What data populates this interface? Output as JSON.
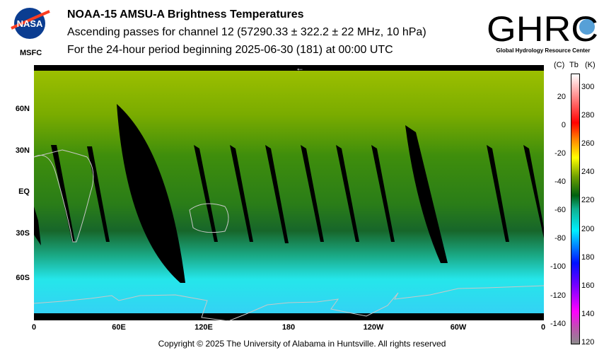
{
  "header": {
    "title": "NOAA-15 AMSU-A Brightness Temperatures",
    "subtitle": "Ascending passes for channel 12 (57290.33 ± 322.2 ± 22 MHz, 10 hPa)",
    "period": "For the 24-hour period beginning 2025-06-30 (181) at 00:00 UTC",
    "left_logo_text": "NASA",
    "left_logo_caption": "MSFC",
    "right_logo_text": "GHRC",
    "right_logo_caption": "Global Hydrology Resource Center"
  },
  "chart_data": {
    "type": "heatmap",
    "title": "NOAA-15 AMSU-A Brightness Temperatures",
    "x_ticks": [
      "0",
      "60E",
      "120E",
      "180",
      "120W",
      "60W",
      "0"
    ],
    "y_ticks": [
      "60N",
      "30N",
      "EQ",
      "30S",
      "60S"
    ],
    "xlim": [
      0,
      360
    ],
    "ylim": [
      -90,
      90
    ],
    "colorbar": {
      "label_c": "(C)",
      "label_tb": "Tb",
      "label_k": "(K)",
      "kelvin_ticks": [
        "300",
        "280",
        "260",
        "240",
        "220",
        "200",
        "180",
        "160",
        "140",
        "120"
      ],
      "celsius_ticks": [
        "20",
        "0",
        "-20",
        "-40",
        "-60",
        "-80",
        "-100",
        "-120",
        "-140"
      ],
      "range_k": [
        120,
        310
      ]
    },
    "field_description_values_k": {
      "north_pole": 245,
      "60N": 238,
      "equator": 228,
      "30S": 222,
      "60S": 200,
      "antarctic": 198
    },
    "direction_arrow": "←"
  },
  "footer": {
    "copyright": "Copyright © 2025 The University of Alabama in Huntsville.  All rights reserved"
  }
}
